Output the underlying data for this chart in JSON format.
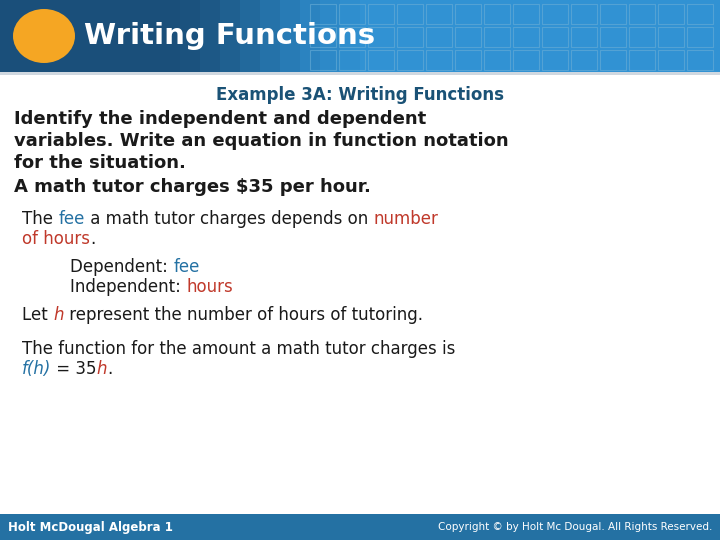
{
  "title": "Writing Functions",
  "subtitle": "Example 3A: Writing Functions",
  "header_bg_dark": "#1a4f7a",
  "header_bg_mid": "#2471a3",
  "header_grid_color": "#5b9bd5",
  "oval_color": "#f5a623",
  "subtitle_color": "#1a5276",
  "body_bg": "#ffffff",
  "bold_text_color": "#1a1a1a",
  "normal_text_color": "#1a1a1a",
  "blue_highlight": "#2471a3",
  "red_highlight": "#c0392b",
  "footer_bg": "#2471a3",
  "footer_left": "Holt McDougal Algebra 1",
  "footer_right": "Copyright © by Holt Mc Dougal. All Rights Reserved.",
  "footer_text_color": "#ffffff"
}
